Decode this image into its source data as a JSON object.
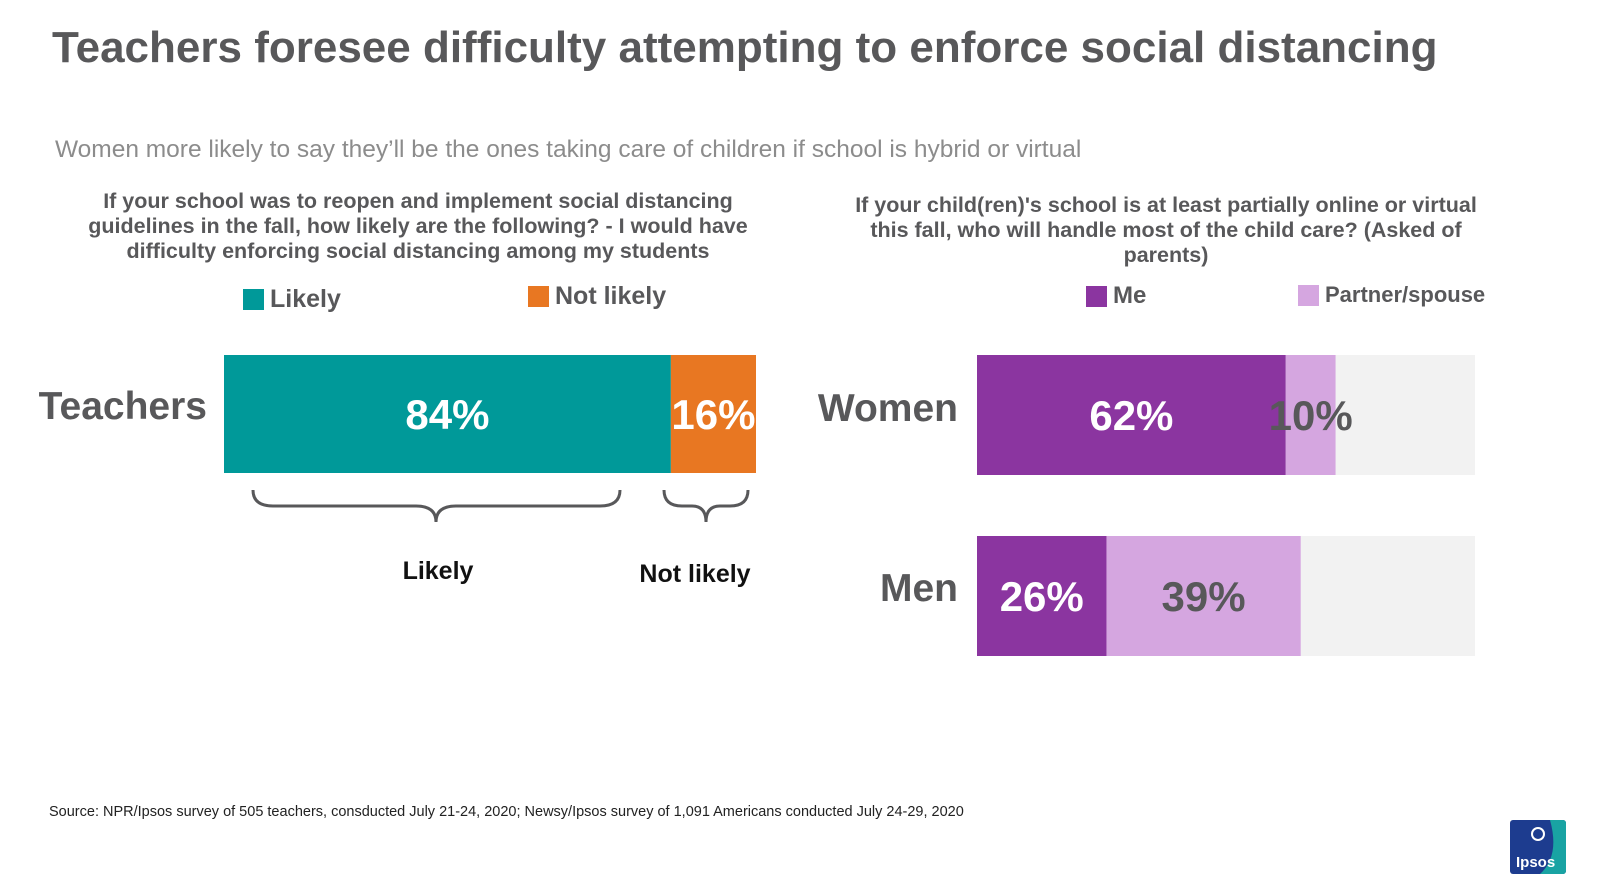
{
  "title": "Teachers foresee difficulty attempting to enforce social distancing",
  "subtitle": "Women more likely to say they’ll be the ones taking care of children if school is hybrid or virtual",
  "left_panel": {
    "question": "If your school was to reopen and implement social distancing guidelines in the fall, how likely are the following? - I would have difficulty enforcing social distancing among my students",
    "legend": [
      {
        "label": "Likely",
        "color": "#009999"
      },
      {
        "label": "Not likely",
        "color": "#e87722"
      }
    ],
    "brace_labels": [
      "Likely",
      "Not likely"
    ]
  },
  "right_panel": {
    "question": "If your child(ren)'s school is at least partially online or virtual this fall, who will handle most of the child care? (Asked of parents)",
    "legend": [
      {
        "label": "Me",
        "color": "#8b35a0"
      },
      {
        "label": "Partner/spouse",
        "color": "#d5a6e0"
      }
    ]
  },
  "chart_data": [
    {
      "type": "bar",
      "orientation": "horizontal",
      "stacked": true,
      "title": "If your school was to reopen and implement social distancing guidelines in the fall, how likely are the following? - I would have difficulty enforcing social distancing among my students",
      "categories": [
        "Teachers"
      ],
      "series": [
        {
          "name": "Likely",
          "values": [
            84
          ],
          "labels": [
            "84%"
          ],
          "color": "#009999",
          "label_color": "#ffffff"
        },
        {
          "name": "Not likely",
          "values": [
            16
          ],
          "labels": [
            "16%"
          ],
          "color": "#e87722",
          "label_color": "#ffffff"
        }
      ],
      "xlim": [
        0,
        100
      ]
    },
    {
      "type": "bar",
      "orientation": "horizontal",
      "stacked": true,
      "title": "If your child(ren)'s school is at least partially online or virtual this fall, who will handle most of the child care? (Asked of parents)",
      "categories": [
        "Women",
        "Men"
      ],
      "series": [
        {
          "name": "Me",
          "values": [
            62,
            26
          ],
          "labels": [
            "62%",
            "26%"
          ],
          "color": "#8b35a0",
          "label_color": "#ffffff"
        },
        {
          "name": "Partner/spouse",
          "values": [
            10,
            39
          ],
          "labels": [
            "10%",
            "39%"
          ],
          "color": "#d5a6e0",
          "label_color": "#58585a"
        }
      ],
      "background_color": "#f2f2f2",
      "xlim": [
        0,
        100
      ]
    }
  ],
  "source": "Source: NPR/Ipsos survey of 505 teachers, consducted July 21-24, 2020; Newsy/Ipsos survey of 1,091 Americans conducted July 24-29, 2020",
  "logo_text": "Ipsos"
}
